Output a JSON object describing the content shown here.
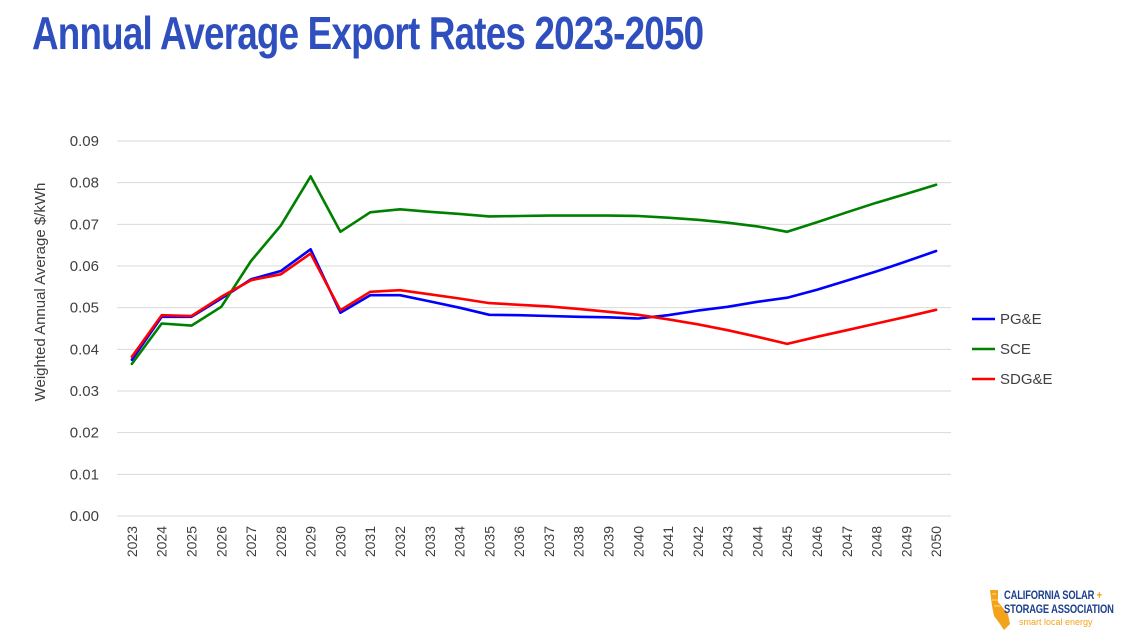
{
  "slide": {
    "title": "Annual Average Export Rates 2023-2050"
  },
  "colors": {
    "title": "#2f4fbf",
    "grid": "#d9d9d9",
    "axis_text": "#404040",
    "logo_blue": "#1c3f8c",
    "logo_orange": "#f2a31b"
  },
  "logo": {
    "line1": "CALIFORNIA SOLAR",
    "plus": "+",
    "line2": "STORAGE ASSOCIATION",
    "tagline": "smart local energy",
    "icon": "california-sun-logo-icon"
  },
  "chart_data": {
    "type": "line",
    "title": "",
    "xlabel": "",
    "ylabel": "Weighted Annual Average $/kWh",
    "ylim": [
      0,
      0.09
    ],
    "yticks": [
      "0.00",
      "0.01",
      "0.02",
      "0.03",
      "0.04",
      "0.05",
      "0.06",
      "0.07",
      "0.08",
      "0.09"
    ],
    "grid": true,
    "legend_position": "right",
    "categories": [
      "2023",
      "2024",
      "2025",
      "2026",
      "2027",
      "2028",
      "2029",
      "2030",
      "2031",
      "2032",
      "2033",
      "2034",
      "2035",
      "2036",
      "2037",
      "2038",
      "2039",
      "2040",
      "2041",
      "2042",
      "2043",
      "2044",
      "2045",
      "2046",
      "2047",
      "2048",
      "2049",
      "2050"
    ],
    "series": [
      {
        "name": "PG&E",
        "color": "#0000ff",
        "values": [
          0.0375,
          0.0478,
          0.0478,
          0.0522,
          0.0568,
          0.0588,
          0.064,
          0.0488,
          0.053,
          0.053,
          0.0515,
          0.05,
          0.0483,
          0.0482,
          0.048,
          0.0478,
          0.0477,
          0.0474,
          0.0482,
          0.0493,
          0.0502,
          0.0514,
          0.0524,
          0.0543,
          0.0565,
          0.0587,
          0.0611,
          0.0636
        ]
      },
      {
        "name": "SCE",
        "color": "#008000",
        "values": [
          0.0365,
          0.0462,
          0.0457,
          0.0502,
          0.0612,
          0.0697,
          0.0815,
          0.0682,
          0.0729,
          0.0736,
          0.073,
          0.0725,
          0.0719,
          0.072,
          0.0721,
          0.0721,
          0.0721,
          0.072,
          0.0716,
          0.0711,
          0.0704,
          0.0695,
          0.0682,
          0.0705,
          0.0729,
          0.0752,
          0.0773,
          0.0795
        ]
      },
      {
        "name": "SDG&E",
        "color": "#ff0000",
        "values": [
          0.0382,
          0.0482,
          0.048,
          0.0526,
          0.0566,
          0.058,
          0.063,
          0.0494,
          0.0538,
          0.0542,
          0.0532,
          0.0522,
          0.0511,
          0.0507,
          0.0503,
          0.0497,
          0.049,
          0.0483,
          0.0472,
          0.046,
          0.0446,
          0.043,
          0.0413,
          0.043,
          0.0446,
          0.0462,
          0.0478,
          0.0495
        ]
      }
    ]
  }
}
